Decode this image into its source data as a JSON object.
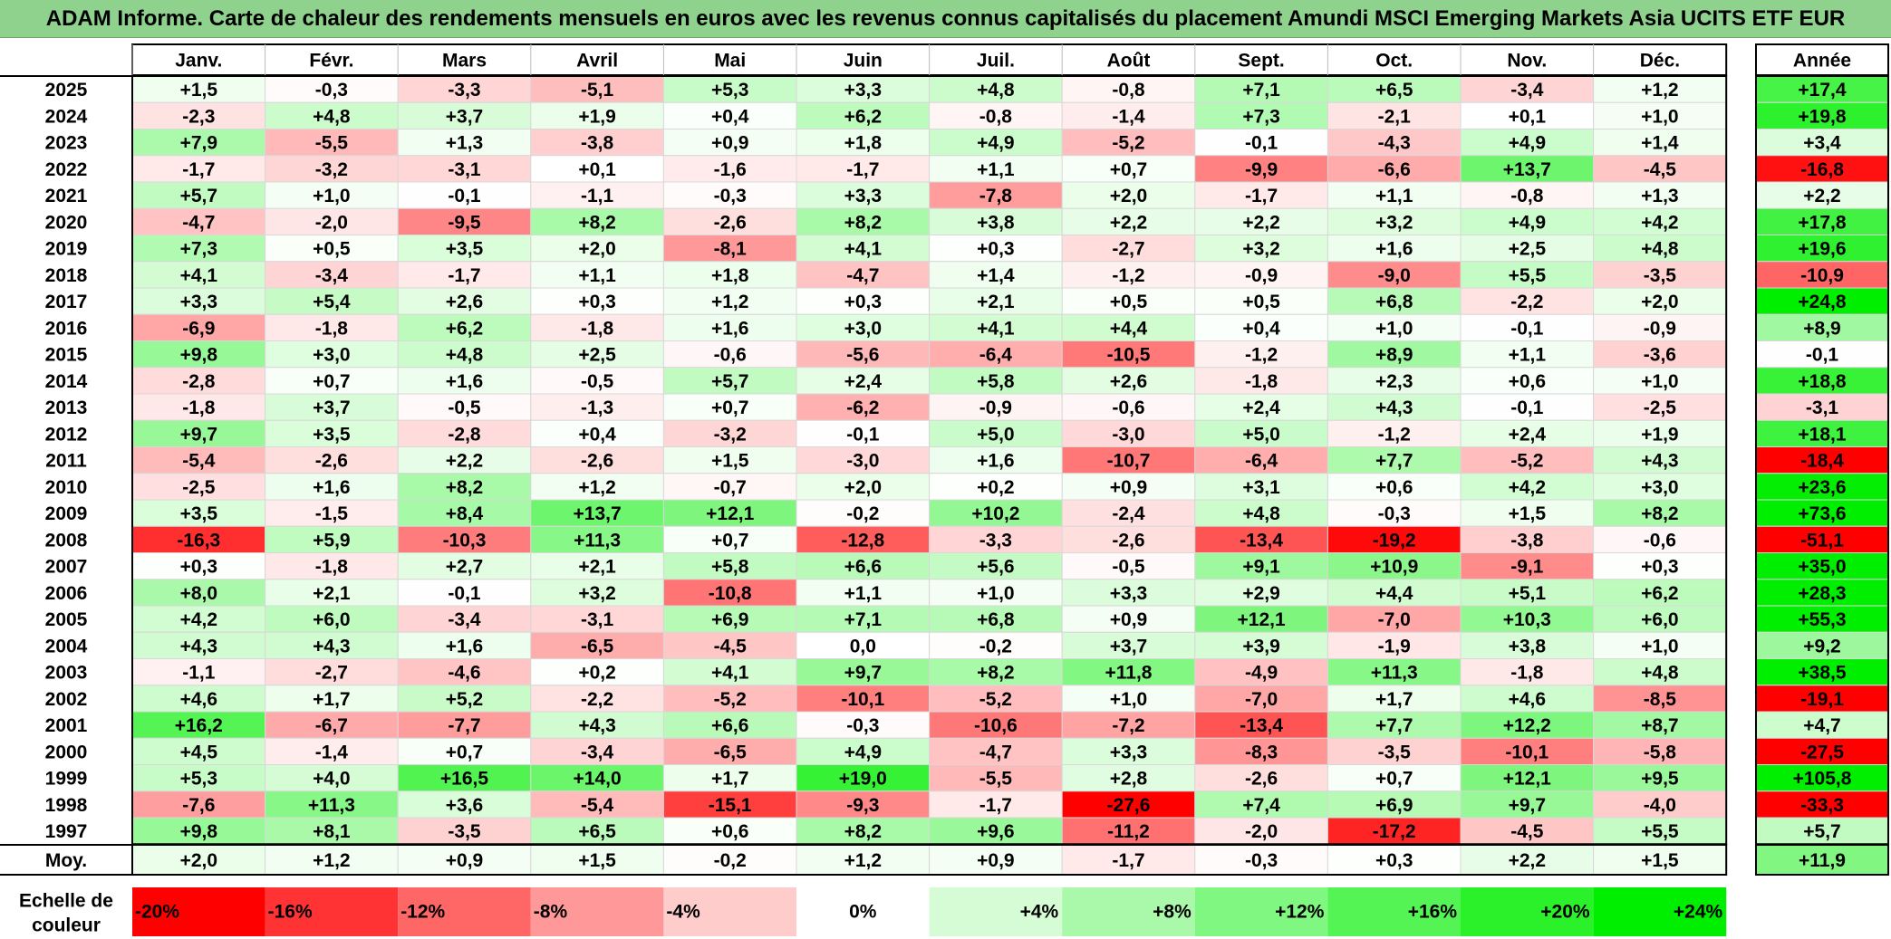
{
  "title": "ADAM Informe. Carte de chaleur des rendements mensuels en euros avec les revenus connus capitalisés du placement Amundi MSCI Emerging Markets Asia UCITS ETF EUR",
  "chart_data": {
    "type": "heatmap",
    "months": [
      "Janv.",
      "Févr.",
      "Mars",
      "Avril",
      "Mai",
      "Juin",
      "Juil.",
      "Août",
      "Sept.",
      "Oct.",
      "Nov.",
      "Déc."
    ],
    "year_header": "Année",
    "rows": [
      {
        "year": "2025",
        "values": [
          "+1,5",
          "-0,3",
          "-3,3",
          "-5,1",
          "+5,3",
          "+3,3",
          "+4,8",
          "-0,8",
          "+7,1",
          "+6,5",
          "-3,4",
          "+1,2"
        ],
        "annual": "+17,4"
      },
      {
        "year": "2024",
        "values": [
          "-2,3",
          "+4,8",
          "+3,7",
          "+1,9",
          "+0,4",
          "+6,2",
          "-0,8",
          "-1,4",
          "+7,3",
          "-2,1",
          "+0,1",
          "+1,0"
        ],
        "annual": "+19,8"
      },
      {
        "year": "2023",
        "values": [
          "+7,9",
          "-5,5",
          "+1,3",
          "-3,8",
          "+0,9",
          "+1,8",
          "+4,9",
          "-5,2",
          "-0,1",
          "-4,3",
          "+4,9",
          "+1,4"
        ],
        "annual": "+3,4"
      },
      {
        "year": "2022",
        "values": [
          "-1,7",
          "-3,2",
          "-3,1",
          "+0,1",
          "-1,6",
          "-1,7",
          "+1,1",
          "+0,7",
          "-9,9",
          "-6,6",
          "+13,7",
          "-4,5"
        ],
        "annual": "-16,8"
      },
      {
        "year": "2021",
        "values": [
          "+5,7",
          "+1,0",
          "-0,1",
          "-1,1",
          "-0,3",
          "+3,3",
          "-7,8",
          "+2,0",
          "-1,7",
          "+1,1",
          "-0,8",
          "+1,3"
        ],
        "annual": "+2,2"
      },
      {
        "year": "2020",
        "values": [
          "-4,7",
          "-2,0",
          "-9,5",
          "+8,2",
          "-2,6",
          "+8,2",
          "+3,8",
          "+2,2",
          "+2,2",
          "+3,2",
          "+4,9",
          "+4,2"
        ],
        "annual": "+17,8"
      },
      {
        "year": "2019",
        "values": [
          "+7,3",
          "+0,5",
          "+3,5",
          "+2,0",
          "-8,1",
          "+4,1",
          "+0,3",
          "-2,7",
          "+3,2",
          "+1,6",
          "+2,5",
          "+4,8"
        ],
        "annual": "+19,6"
      },
      {
        "year": "2018",
        "values": [
          "+4,1",
          "-3,4",
          "-1,7",
          "+1,1",
          "+1,8",
          "-4,7",
          "+1,4",
          "-1,2",
          "-0,9",
          "-9,0",
          "+5,5",
          "-3,5"
        ],
        "annual": "-10,9"
      },
      {
        "year": "2017",
        "values": [
          "+3,3",
          "+5,4",
          "+2,6",
          "+0,3",
          "+1,2",
          "+0,3",
          "+2,1",
          "+0,5",
          "+0,5",
          "+6,8",
          "-2,2",
          "+2,0"
        ],
        "annual": "+24,8"
      },
      {
        "year": "2016",
        "values": [
          "-6,9",
          "-1,8",
          "+6,2",
          "-1,8",
          "+1,6",
          "+3,0",
          "+4,1",
          "+4,4",
          "+0,4",
          "+1,0",
          "-0,1",
          "-0,9"
        ],
        "annual": "+8,9"
      },
      {
        "year": "2015",
        "values": [
          "+9,8",
          "+3,0",
          "+4,8",
          "+2,5",
          "-0,6",
          "-5,6",
          "-6,4",
          "-10,5",
          "-1,2",
          "+8,9",
          "+1,1",
          "-3,6"
        ],
        "annual": "-0,1"
      },
      {
        "year": "2014",
        "values": [
          "-2,8",
          "+0,7",
          "+1,6",
          "-0,5",
          "+5,7",
          "+2,4",
          "+5,8",
          "+2,6",
          "-1,8",
          "+2,3",
          "+0,6",
          "+1,0"
        ],
        "annual": "+18,8"
      },
      {
        "year": "2013",
        "values": [
          "-1,8",
          "+3,7",
          "-0,5",
          "-1,3",
          "+0,7",
          "-6,2",
          "-0,9",
          "-0,6",
          "+2,4",
          "+4,3",
          "-0,1",
          "-2,5"
        ],
        "annual": "-3,1"
      },
      {
        "year": "2012",
        "values": [
          "+9,7",
          "+3,5",
          "-2,8",
          "+0,4",
          "-3,2",
          "-0,1",
          "+5,0",
          "-3,0",
          "+5,0",
          "-1,2",
          "+2,4",
          "+1,9"
        ],
        "annual": "+18,1"
      },
      {
        "year": "2011",
        "values": [
          "-5,4",
          "-2,6",
          "+2,2",
          "-2,6",
          "+1,5",
          "-3,0",
          "+1,6",
          "-10,7",
          "-6,4",
          "+7,7",
          "-5,2",
          "+4,3"
        ],
        "annual": "-18,4"
      },
      {
        "year": "2010",
        "values": [
          "-2,5",
          "+1,6",
          "+8,2",
          "+1,2",
          "-0,7",
          "+2,0",
          "+0,2",
          "+0,9",
          "+3,1",
          "+0,6",
          "+4,2",
          "+3,0"
        ],
        "annual": "+23,6"
      },
      {
        "year": "2009",
        "values": [
          "+3,5",
          "-1,5",
          "+8,4",
          "+13,7",
          "+12,1",
          "-0,2",
          "+10,2",
          "-2,4",
          "+4,8",
          "-0,3",
          "+1,5",
          "+8,2"
        ],
        "annual": "+73,6"
      },
      {
        "year": "2008",
        "values": [
          "-16,3",
          "+5,9",
          "-10,3",
          "+11,3",
          "+0,7",
          "-12,8",
          "-3,3",
          "-2,6",
          "-13,4",
          "-19,2",
          "-3,8",
          "-0,6"
        ],
        "annual": "-51,1"
      },
      {
        "year": "2007",
        "values": [
          "+0,3",
          "-1,8",
          "+2,7",
          "+2,1",
          "+5,8",
          "+6,6",
          "+5,6",
          "-0,5",
          "+9,1",
          "+10,9",
          "-9,1",
          "+0,3"
        ],
        "annual": "+35,0"
      },
      {
        "year": "2006",
        "values": [
          "+8,0",
          "+2,1",
          "-0,1",
          "+3,2",
          "-10,8",
          "+1,1",
          "+1,0",
          "+3,3",
          "+2,9",
          "+4,4",
          "+5,1",
          "+6,2"
        ],
        "annual": "+28,3"
      },
      {
        "year": "2005",
        "values": [
          "+4,2",
          "+6,0",
          "-3,4",
          "-3,1",
          "+6,9",
          "+7,1",
          "+6,8",
          "+0,9",
          "+12,1",
          "-7,0",
          "+10,3",
          "+6,0"
        ],
        "annual": "+55,3"
      },
      {
        "year": "2004",
        "values": [
          "+4,3",
          "+4,3",
          "+1,6",
          "-6,5",
          "-4,5",
          "0,0",
          "-0,2",
          "+3,7",
          "+3,9",
          "-1,9",
          "+3,8",
          "+1,0"
        ],
        "annual": "+9,2"
      },
      {
        "year": "2003",
        "values": [
          "-1,1",
          "-2,7",
          "-4,6",
          "+0,2",
          "+4,1",
          "+9,7",
          "+8,2",
          "+11,8",
          "-4,9",
          "+11,3",
          "-1,8",
          "+4,8"
        ],
        "annual": "+38,5"
      },
      {
        "year": "2002",
        "values": [
          "+4,6",
          "+1,7",
          "+5,2",
          "-2,2",
          "-5,2",
          "-10,1",
          "-5,2",
          "+1,0",
          "-7,0",
          "+1,7",
          "+4,6",
          "-8,5"
        ],
        "annual": "-19,1"
      },
      {
        "year": "2001",
        "values": [
          "+16,2",
          "-6,7",
          "-7,7",
          "+4,3",
          "+6,6",
          "-0,3",
          "-10,6",
          "-7,2",
          "-13,4",
          "+7,7",
          "+12,2",
          "+8,7"
        ],
        "annual": "+4,7"
      },
      {
        "year": "2000",
        "values": [
          "+4,5",
          "-1,4",
          "+0,7",
          "-3,4",
          "-6,5",
          "+4,9",
          "-4,7",
          "+3,3",
          "-8,3",
          "-3,5",
          "-10,1",
          "-5,8"
        ],
        "annual": "-27,5"
      },
      {
        "year": "1999",
        "values": [
          "+5,3",
          "+4,0",
          "+16,5",
          "+14,0",
          "+1,7",
          "+19,0",
          "-5,5",
          "+2,8",
          "-2,6",
          "+0,7",
          "+12,1",
          "+9,5"
        ],
        "annual": "+105,8"
      },
      {
        "year": "1998",
        "values": [
          "-7,6",
          "+11,3",
          "+3,6",
          "-5,4",
          "-15,1",
          "-9,3",
          "-1,7",
          "-27,6",
          "+7,4",
          "+6,9",
          "+9,7",
          "-4,0"
        ],
        "annual": "-33,3"
      },
      {
        "year": "1997",
        "values": [
          "+9,8",
          "+8,1",
          "-3,5",
          "+6,5",
          "+0,6",
          "+8,2",
          "+9,6",
          "-11,2",
          "-2,0",
          "-17,2",
          "-4,5",
          "+5,5"
        ],
        "annual": "+5,7"
      }
    ],
    "average": {
      "label": "Moy.",
      "values": [
        "+2,0",
        "+1,2",
        "+0,9",
        "+1,5",
        "-0,2",
        "+1,2",
        "+0,9",
        "-1,7",
        "-0,3",
        "+0,3",
        "+2,2",
        "+1,5"
      ],
      "annual": "+11,9"
    },
    "scale": {
      "label_line1": "Echelle de",
      "label_line2": "couleur",
      "steps": [
        "-20%",
        "-16%",
        "-12%",
        "-8%",
        "-4%",
        "0%",
        "+4%",
        "+8%",
        "+12%",
        "+16%",
        "+20%",
        "+24%"
      ]
    },
    "colors": {
      "negative_max": "#ff0000",
      "neutral": "#ffffff",
      "positive_max": "#00ee00",
      "title_bg": "#8ed28e"
    }
  }
}
